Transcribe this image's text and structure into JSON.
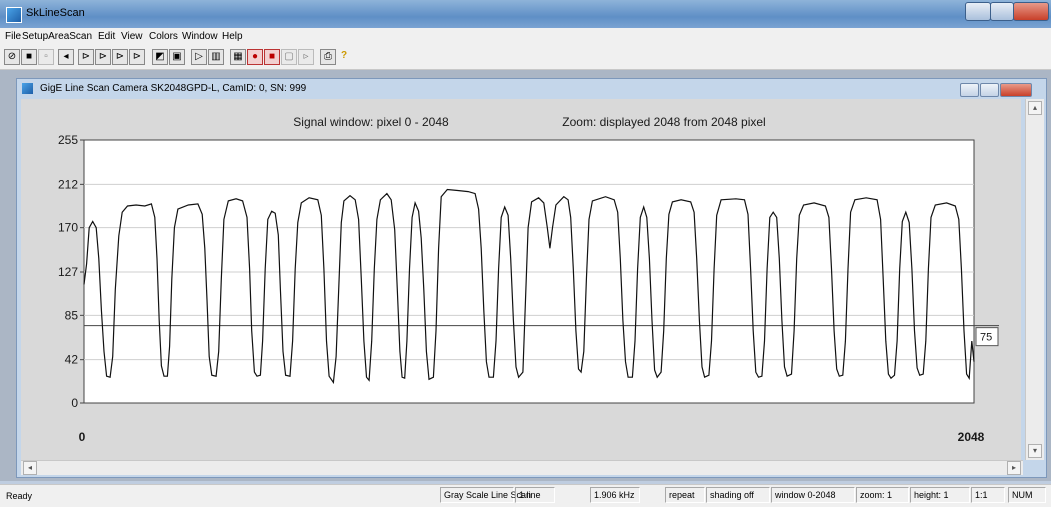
{
  "window": {
    "title": "SkLineScan"
  },
  "menu": [
    "File",
    "SetupAreaScan",
    "Edit",
    "View",
    "Colors",
    "Window",
    "Help"
  ],
  "child": {
    "title": "GigE Line Scan Camera SK2048GPD-L, CamID: 0, SN: 999"
  },
  "plot": {
    "signal_title": "Signal window: pixel 0 - 2048",
    "zoom_title": "Zoom: displayed 2048 from 2048 pixel",
    "y_ticks": [
      "255",
      "212",
      "170",
      "127",
      "85",
      "42",
      "0"
    ],
    "x_min_label": "0",
    "x_max_label": "2048",
    "threshold_value": "75"
  },
  "chart_data": {
    "type": "line",
    "title": "Signal window: pixel 0 - 2048",
    "subtitle": "Zoom: displayed 2048 from 2048 pixel",
    "xlim": [
      0,
      2048
    ],
    "ylim": [
      0,
      255
    ],
    "y_ticks": [
      0,
      42,
      85,
      127,
      170,
      212,
      255
    ],
    "threshold": 75,
    "series": [
      {
        "points": [
          [
            0,
            115
          ],
          [
            6,
            135
          ],
          [
            12,
            170
          ],
          [
            20,
            176
          ],
          [
            28,
            170
          ],
          [
            34,
            140
          ],
          [
            40,
            90
          ],
          [
            46,
            50
          ],
          [
            52,
            26
          ],
          [
            60,
            25
          ],
          [
            66,
            45
          ],
          [
            72,
            110
          ],
          [
            80,
            162
          ],
          [
            88,
            185
          ],
          [
            100,
            191
          ],
          [
            120,
            192
          ],
          [
            140,
            191
          ],
          [
            155,
            193
          ],
          [
            163,
            180
          ],
          [
            168,
            140
          ],
          [
            173,
            80
          ],
          [
            178,
            36
          ],
          [
            184,
            26
          ],
          [
            192,
            26
          ],
          [
            197,
            55
          ],
          [
            202,
            120
          ],
          [
            208,
            170
          ],
          [
            216,
            188
          ],
          [
            240,
            192
          ],
          [
            262,
            193
          ],
          [
            272,
            183
          ],
          [
            278,
            150
          ],
          [
            283,
            100
          ],
          [
            288,
            45
          ],
          [
            294,
            27
          ],
          [
            304,
            26
          ],
          [
            310,
            50
          ],
          [
            316,
            120
          ],
          [
            322,
            178
          ],
          [
            332,
            196
          ],
          [
            350,
            198
          ],
          [
            365,
            196
          ],
          [
            375,
            180
          ],
          [
            381,
            130
          ],
          [
            386,
            70
          ],
          [
            392,
            30
          ],
          [
            398,
            26
          ],
          [
            406,
            27
          ],
          [
            411,
            60
          ],
          [
            417,
            130
          ],
          [
            423,
            178
          ],
          [
            432,
            186
          ],
          [
            440,
            184
          ],
          [
            447,
            163
          ],
          [
            452,
            110
          ],
          [
            458,
            50
          ],
          [
            464,
            27
          ],
          [
            474,
            26
          ],
          [
            480,
            60
          ],
          [
            486,
            130
          ],
          [
            492,
            175
          ],
          [
            500,
            194
          ],
          [
            518,
            199
          ],
          [
            538,
            197
          ],
          [
            546,
            182
          ],
          [
            552,
            130
          ],
          [
            558,
            60
          ],
          [
            564,
            26
          ],
          [
            574,
            20
          ],
          [
            580,
            45
          ],
          [
            586,
            110
          ],
          [
            592,
            175
          ],
          [
            598,
            196
          ],
          [
            612,
            201
          ],
          [
            624,
            197
          ],
          [
            632,
            178
          ],
          [
            638,
            120
          ],
          [
            644,
            60
          ],
          [
            650,
            25
          ],
          [
            656,
            22
          ],
          [
            662,
            60
          ],
          [
            668,
            130
          ],
          [
            674,
            178
          ],
          [
            682,
            197
          ],
          [
            697,
            203
          ],
          [
            707,
            197
          ],
          [
            715,
            168
          ],
          [
            721,
            110
          ],
          [
            727,
            50
          ],
          [
            732,
            25
          ],
          [
            738,
            24
          ],
          [
            743,
            60
          ],
          [
            749,
            130
          ],
          [
            755,
            180
          ],
          [
            762,
            194
          ],
          [
            770,
            186
          ],
          [
            776,
            160
          ],
          [
            782,
            110
          ],
          [
            788,
            50
          ],
          [
            794,
            23
          ],
          [
            804,
            25
          ],
          [
            810,
            70
          ],
          [
            816,
            150
          ],
          [
            822,
            200
          ],
          [
            836,
            207
          ],
          [
            860,
            206
          ],
          [
            884,
            205
          ],
          [
            900,
            203
          ],
          [
            908,
            188
          ],
          [
            914,
            150
          ],
          [
            920,
            90
          ],
          [
            926,
            40
          ],
          [
            932,
            25
          ],
          [
            942,
            25
          ],
          [
            948,
            60
          ],
          [
            954,
            130
          ],
          [
            960,
            180
          ],
          [
            968,
            190
          ],
          [
            976,
            182
          ],
          [
            982,
            140
          ],
          [
            988,
            80
          ],
          [
            994,
            35
          ],
          [
            1000,
            25
          ],
          [
            1010,
            30
          ],
          [
            1016,
            100
          ],
          [
            1022,
            170
          ],
          [
            1030,
            195
          ],
          [
            1046,
            199
          ],
          [
            1058,
            194
          ],
          [
            1066,
            170
          ],
          [
            1072,
            150
          ],
          [
            1078,
            170
          ],
          [
            1086,
            192
          ],
          [
            1104,
            200
          ],
          [
            1114,
            197
          ],
          [
            1120,
            180
          ],
          [
            1126,
            130
          ],
          [
            1132,
            70
          ],
          [
            1138,
            33
          ],
          [
            1144,
            30
          ],
          [
            1150,
            50
          ],
          [
            1156,
            120
          ],
          [
            1162,
            178
          ],
          [
            1170,
            196
          ],
          [
            1200,
            200
          ],
          [
            1220,
            197
          ],
          [
            1228,
            185
          ],
          [
            1234,
            140
          ],
          [
            1240,
            80
          ],
          [
            1246,
            40
          ],
          [
            1252,
            25
          ],
          [
            1262,
            25
          ],
          [
            1268,
            60
          ],
          [
            1274,
            130
          ],
          [
            1280,
            180
          ],
          [
            1288,
            190
          ],
          [
            1295,
            180
          ],
          [
            1301,
            140
          ],
          [
            1307,
            80
          ],
          [
            1313,
            32
          ],
          [
            1319,
            25
          ],
          [
            1328,
            30
          ],
          [
            1334,
            70
          ],
          [
            1340,
            140
          ],
          [
            1346,
            183
          ],
          [
            1354,
            195
          ],
          [
            1374,
            197
          ],
          [
            1396,
            195
          ],
          [
            1404,
            185
          ],
          [
            1410,
            140
          ],
          [
            1416,
            80
          ],
          [
            1422,
            35
          ],
          [
            1428,
            25
          ],
          [
            1438,
            27
          ],
          [
            1444,
            60
          ],
          [
            1450,
            130
          ],
          [
            1456,
            182
          ],
          [
            1466,
            197
          ],
          [
            1500,
            198
          ],
          [
            1520,
            197
          ],
          [
            1528,
            183
          ],
          [
            1534,
            130
          ],
          [
            1540,
            70
          ],
          [
            1546,
            30
          ],
          [
            1552,
            25
          ],
          [
            1560,
            26
          ],
          [
            1566,
            60
          ],
          [
            1572,
            130
          ],
          [
            1578,
            180
          ],
          [
            1586,
            185
          ],
          [
            1594,
            180
          ],
          [
            1600,
            140
          ],
          [
            1606,
            80
          ],
          [
            1612,
            35
          ],
          [
            1618,
            26
          ],
          [
            1628,
            28
          ],
          [
            1634,
            70
          ],
          [
            1640,
            140
          ],
          [
            1646,
            182
          ],
          [
            1656,
            192
          ],
          [
            1680,
            194
          ],
          [
            1706,
            191
          ],
          [
            1714,
            180
          ],
          [
            1720,
            130
          ],
          [
            1726,
            70
          ],
          [
            1732,
            33
          ],
          [
            1738,
            26
          ],
          [
            1746,
            27
          ],
          [
            1752,
            60
          ],
          [
            1758,
            130
          ],
          [
            1764,
            185
          ],
          [
            1774,
            197
          ],
          [
            1800,
            199
          ],
          [
            1825,
            197
          ],
          [
            1833,
            178
          ],
          [
            1839,
            120
          ],
          [
            1845,
            60
          ],
          [
            1851,
            28
          ],
          [
            1857,
            24
          ],
          [
            1865,
            27
          ],
          [
            1871,
            60
          ],
          [
            1877,
            130
          ],
          [
            1883,
            176
          ],
          [
            1891,
            185
          ],
          [
            1899,
            175
          ],
          [
            1905,
            130
          ],
          [
            1911,
            70
          ],
          [
            1917,
            34
          ],
          [
            1923,
            27
          ],
          [
            1931,
            28
          ],
          [
            1937,
            60
          ],
          [
            1943,
            130
          ],
          [
            1949,
            180
          ],
          [
            1959,
            192
          ],
          [
            1985,
            194
          ],
          [
            2005,
            191
          ],
          [
            2013,
            178
          ],
          [
            2019,
            130
          ],
          [
            2025,
            70
          ],
          [
            2031,
            28
          ],
          [
            2037,
            24
          ],
          [
            2043,
            60
          ],
          [
            2048,
            40
          ]
        ]
      }
    ]
  },
  "status": {
    "ready": "Ready",
    "parts": [
      "Gray Scale Line Scan",
      "1 line",
      "1.906 kHz",
      "repeat",
      "shading off",
      "window 0-2048",
      "zoom: 1",
      "height: 1",
      "1:1",
      "NUM"
    ]
  }
}
